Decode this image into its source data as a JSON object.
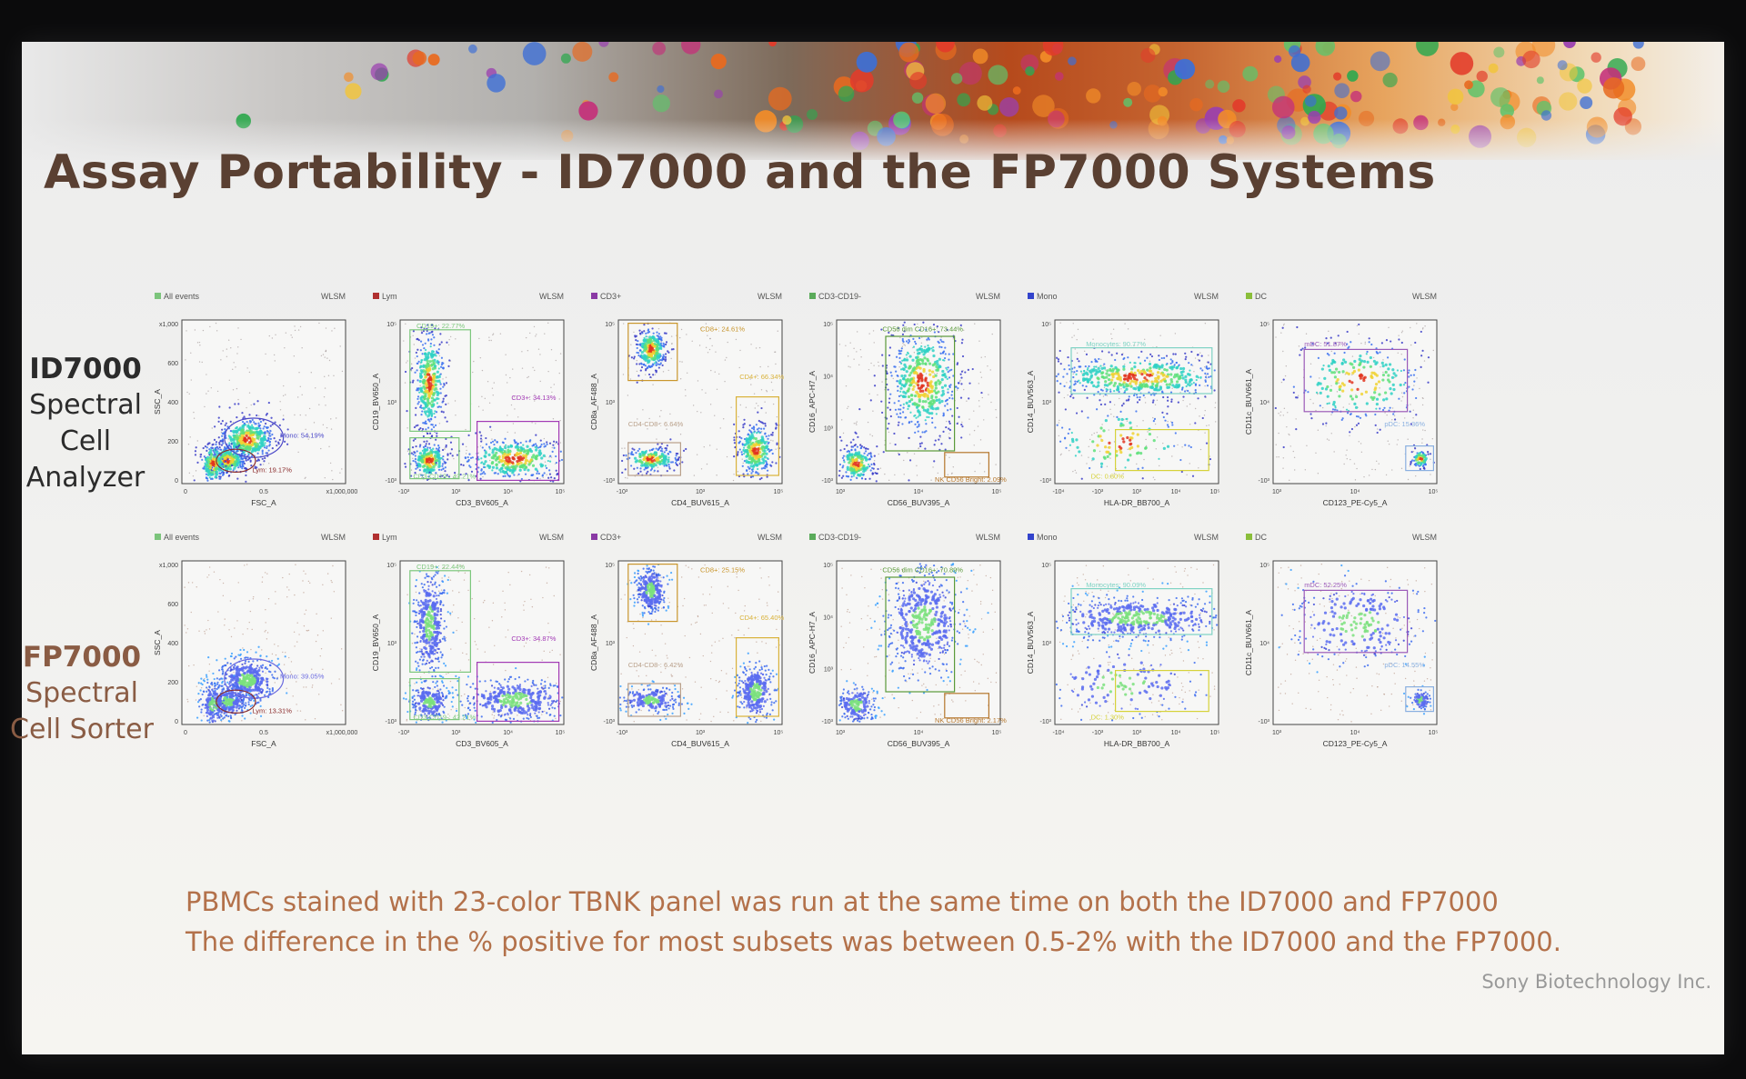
{
  "title": "Assay Portability - ID7000 and the FP7000 Systems",
  "row1": {
    "name": "ID7000",
    "line2": "Spectral",
    "line3": "Cell",
    "line4": "Analyzer"
  },
  "row2": {
    "name": "FP7000",
    "line2": "Spectral",
    "line3": "Cell Sorter"
  },
  "caption": {
    "line1": "PBMCs stained with 23-color TBNK panel was run at the same time on both the ID7000 and FP7000",
    "line2": "The difference in the % positive for most subsets was between 0.5-2% with the ID7000 and the FP7000."
  },
  "credit": "Sony Biotechnology Inc.",
  "colors": {
    "title": "#5a4032",
    "row2_label": "#8a5c44",
    "caption": "#b3714a"
  },
  "panels": [
    {
      "gate": "All events",
      "tag": "WLSM",
      "gate_color": "#7bc47b",
      "xlabel": "FSC_A",
      "ylabel": "SSC_A",
      "xticks": [
        "0",
        "0.5",
        "x1,000,000"
      ],
      "yticks": [
        "x1,000",
        "600",
        "400",
        "200",
        "0"
      ],
      "gates_id": [
        {
          "label": "Mono: 54.19%",
          "color": "#4b48c8"
        },
        {
          "label": "Lym: 19.17%",
          "color": "#8a2a2a"
        }
      ],
      "gates_fp": [
        {
          "label": "Mono: 39.05%",
          "color": "#6a6ae0"
        },
        {
          "label": "Lym: 13.31%",
          "color": "#8a2a2a"
        }
      ]
    },
    {
      "gate": "Lym",
      "tag": "WLSM",
      "gate_color": "#b03030",
      "xlabel": "CD3_BV605_A",
      "ylabel": "CD19_BV650_A",
      "xticks": [
        "-10³",
        "10³",
        "10⁴",
        "10⁵"
      ],
      "yticks": [
        "10⁵",
        "10³",
        "-10³"
      ],
      "gates_id": [
        {
          "label": "CD19+: 22.77%",
          "color": "#7cc77c"
        },
        {
          "label": "CD3+: 34.13%",
          "color": "#a23ab5"
        },
        {
          "label": "CD3-CD19-: 42.21%",
          "color": "#7cc77c"
        }
      ],
      "gates_fp": [
        {
          "label": "CD19+: 22.44%",
          "color": "#7cc77c"
        },
        {
          "label": "CD3+: 34.87%",
          "color": "#a23ab5"
        },
        {
          "label": "CD3-CD19-: 42.21%",
          "color": "#7cc77c"
        }
      ]
    },
    {
      "gate": "CD3+",
      "tag": "WLSM",
      "gate_color": "#8a3aa5",
      "xlabel": "CD4_BUV615_A",
      "ylabel": "CD8a_AF488_A",
      "xticks": [
        "-10³",
        "10³",
        "10⁵"
      ],
      "yticks": [
        "10⁵",
        "10³",
        "-10³"
      ],
      "gates_id": [
        {
          "label": "CD8+: 24.61%",
          "color": "#c9962d"
        },
        {
          "label": "CD4+: 66.34%",
          "color": "#d9b23a"
        },
        {
          "label": "CD4-CD8-: 6.64%",
          "color": "#b9a08a"
        }
      ],
      "gates_fp": [
        {
          "label": "CD8+: 25.15%",
          "color": "#c9962d"
        },
        {
          "label": "CD4+: 65.40%",
          "color": "#d9b23a"
        },
        {
          "label": "CD4-CD8-: 6.42%",
          "color": "#b9a08a"
        }
      ]
    },
    {
      "gate": "CD3-CD19-",
      "tag": "WLSM",
      "gate_color": "#5aab5a",
      "xlabel": "CD56_BUV395_A",
      "ylabel": "CD16_APC-H7_A",
      "xticks": [
        "10³",
        "10⁴",
        "10⁵"
      ],
      "yticks": [
        "10⁵",
        "10⁴",
        "10³",
        "-10³"
      ],
      "gates_id": [
        {
          "label": "CD56 dim CD16+: 73.44%",
          "color": "#5b9a3a"
        },
        {
          "label": "NK CD56 Bright: 2.09%",
          "color": "#b5762c"
        }
      ],
      "gates_fp": [
        {
          "label": "CD56 dim CD16+: 70.89%",
          "color": "#5b9a3a"
        },
        {
          "label": "NK CD56 Bright: 2.17%",
          "color": "#b5762c"
        }
      ]
    },
    {
      "gate": "Mono",
      "tag": "WLSM",
      "gate_color": "#3344cc",
      "xlabel": "HLA-DR_BB700_A",
      "ylabel": "CD14_BUV563_A",
      "xticks": [
        "-10⁴",
        "-10³",
        "10³",
        "10⁴",
        "10⁵"
      ],
      "yticks": [
        "10⁵",
        "10³",
        "-10³"
      ],
      "gates_id": [
        {
          "label": "Monocytes: 90.77%",
          "color": "#7fd3c4"
        },
        {
          "label": "DC: 0.80%",
          "color": "#d6d23a"
        }
      ],
      "gates_fp": [
        {
          "label": "Monocytes: 90.09%",
          "color": "#7fd3c4"
        },
        {
          "label": "DC: 1.30%",
          "color": "#d6d23a"
        }
      ]
    },
    {
      "gate": "DC",
      "tag": "WLSM",
      "gate_color": "#8abe3a",
      "xlabel": "CD123_PE-Cy5_A",
      "ylabel": "CD11c_BUV661_A",
      "xticks": [
        "10³",
        "10⁴",
        "10⁵"
      ],
      "yticks": [
        "10⁵",
        "10⁴",
        "-10³"
      ],
      "gates_id": [
        {
          "label": "mDC: 51.87%",
          "color": "#9b5ab8"
        },
        {
          "label": "pDC: 15.36%",
          "color": "#8ab0e0"
        }
      ],
      "gates_fp": [
        {
          "label": "mDC: 52.25%",
          "color": "#9b5ab8"
        },
        {
          "label": "pDC: 14.55%",
          "color": "#8ab0e0"
        }
      ]
    }
  ]
}
